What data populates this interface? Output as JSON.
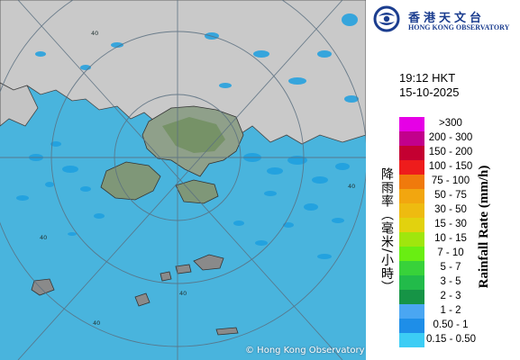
{
  "map": {
    "copyright": "© Hong Kong Observatory",
    "range_labels": [
      "40",
      "40",
      "40",
      "40",
      "40"
    ],
    "colors": {
      "sea": "#49b4dd",
      "land": "#c9c9c9",
      "radar_echo": "#1d9fe0",
      "range_ring": "#5a6f80"
    }
  },
  "header": {
    "logo_zh": "香港天文台",
    "logo_en": "HONG KONG OBSERVATORY",
    "logo_icon": "hko-logo-icon"
  },
  "timestamp": {
    "time": "19:12 HKT",
    "date": "15-10-2025"
  },
  "legend": {
    "title_zh": "降雨率（毫米/小時）",
    "title_en": "Rainfall Rate (mm/h)",
    "items": [
      {
        "label": ">300",
        "color": "#e600e6"
      },
      {
        "label": "200 - 300",
        "color": "#c2008c"
      },
      {
        "label": "150 - 200",
        "color": "#c40031"
      },
      {
        "label": "100 - 150",
        "color": "#ee1c1c"
      },
      {
        "label": "75 - 100",
        "color": "#f07a0c"
      },
      {
        "label": "50 - 75",
        "color": "#f2a60f"
      },
      {
        "label": "30 - 50",
        "color": "#eebb10"
      },
      {
        "label": "15 - 30",
        "color": "#e2d20e"
      },
      {
        "label": "10 - 15",
        "color": "#a0e60d"
      },
      {
        "label": "7 - 10",
        "color": "#69ee12"
      },
      {
        "label": "5 - 7",
        "color": "#38d23a"
      },
      {
        "label": "3 - 5",
        "color": "#22bb4a"
      },
      {
        "label": "2 - 3",
        "color": "#169446"
      },
      {
        "label": "1 - 2",
        "color": "#4aa6f2"
      },
      {
        "label": "0.50 - 1",
        "color": "#1e8ee8"
      },
      {
        "label": "0.15 - 0.50",
        "color": "#3ccdf5"
      }
    ]
  }
}
